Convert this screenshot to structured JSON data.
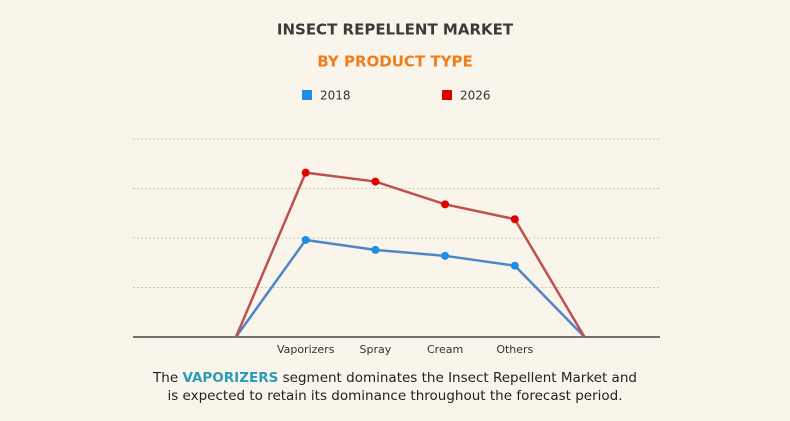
{
  "chart_data": {
    "type": "line",
    "title": "INSECT REPELLENT MARKET",
    "subtitle": "BY PRODUCT TYPE",
    "categories": [
      null,
      "Vaporizers",
      "Spray",
      "Cream",
      "Others",
      null
    ],
    "series": [
      {
        "name": "2018",
        "color": "#1f8fe6",
        "line_color": "#4f86c6",
        "values": [
          0,
          1.96,
          1.76,
          1.64,
          1.44,
          0
        ]
      },
      {
        "name": "2026",
        "color": "#e00000",
        "line_color": "#c0504d",
        "values": [
          0,
          3.32,
          3.14,
          2.68,
          2.38,
          0
        ]
      }
    ],
    "ylim": [
      0,
      4
    ],
    "yticks": [
      0,
      1,
      2,
      3,
      4
    ],
    "grid": true,
    "caption": {
      "before": "The",
      "highlight": "VAPORIZERS",
      "after": "segment dominates the Insect Repellent Market and",
      "line2": "is expected to retain its dominance throughout the forecast period."
    }
  }
}
